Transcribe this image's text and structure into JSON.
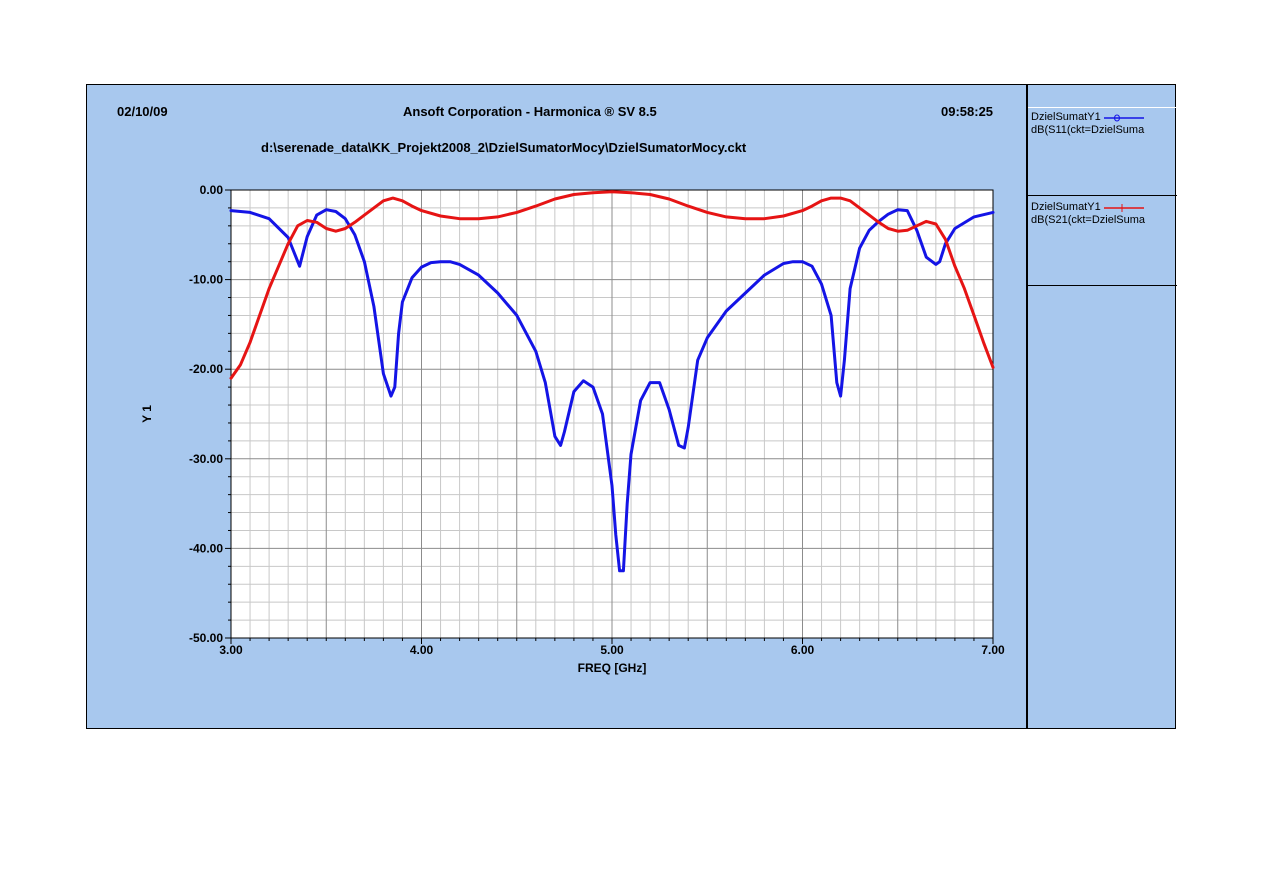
{
  "header": {
    "date": "02/10/09",
    "title": "Ansoft Corporation - Harmonica ® SV 8.5",
    "time": "09:58:25",
    "filepath": "d:\\serenade_data\\KK_Projekt2008_2\\DzielSumatorMocy\\DzielSumatorMocy.ckt"
  },
  "colors": {
    "background": "#a8c8ee",
    "s11": "#1414e6",
    "s21": "#e61414"
  },
  "legend": [
    {
      "name": "DzielSumatY1",
      "expr": "dB(S11(ckt=DzielSuma",
      "color": "#1414e6",
      "marker": "circle"
    },
    {
      "name": "DzielSumatY1",
      "expr": "dB(S21(ckt=DzielSuma",
      "color": "#e61414",
      "marker": "tick"
    }
  ],
  "chart_data": {
    "type": "line",
    "title": "",
    "xlabel": "FREQ [GHz]",
    "ylabel": "Y 1",
    "xlim": [
      3.0,
      7.0
    ],
    "ylim": [
      -50.0,
      0.0
    ],
    "xticks": [
      "3.00",
      "4.00",
      "5.00",
      "6.00",
      "7.00"
    ],
    "yticks": [
      "0.00",
      "-10.00",
      "-20.00",
      "-30.00",
      "-40.00",
      "-50.00"
    ],
    "grid": true,
    "series": [
      {
        "name": "dB(S11(ckt=DzielSuma",
        "color": "#1414e6",
        "x": [
          3.0,
          3.1,
          3.2,
          3.3,
          3.36,
          3.4,
          3.45,
          3.5,
          3.55,
          3.6,
          3.65,
          3.7,
          3.75,
          3.8,
          3.84,
          3.86,
          3.88,
          3.9,
          3.95,
          4.0,
          4.05,
          4.1,
          4.15,
          4.2,
          4.3,
          4.4,
          4.5,
          4.6,
          4.65,
          4.7,
          4.73,
          4.75,
          4.8,
          4.85,
          4.9,
          4.95,
          5.0,
          5.02,
          5.04,
          5.06,
          5.08,
          5.1,
          5.15,
          5.2,
          5.25,
          5.3,
          5.35,
          5.38,
          5.4,
          5.45,
          5.5,
          5.6,
          5.7,
          5.8,
          5.9,
          5.95,
          6.0,
          6.05,
          6.1,
          6.15,
          6.18,
          6.2,
          6.22,
          6.25,
          6.3,
          6.35,
          6.4,
          6.45,
          6.5,
          6.55,
          6.6,
          6.65,
          6.7,
          6.72,
          6.75,
          6.8,
          6.9,
          7.0
        ],
        "values": [
          -2.3,
          -2.5,
          -3.2,
          -5.3,
          -8.5,
          -5.2,
          -2.8,
          -2.2,
          -2.4,
          -3.2,
          -5.0,
          -8.0,
          -13.0,
          -20.5,
          -23.0,
          -22.0,
          -16.0,
          -12.5,
          -9.8,
          -8.6,
          -8.1,
          -8.0,
          -8.0,
          -8.3,
          -9.5,
          -11.5,
          -14.0,
          -18.0,
          -21.5,
          -27.5,
          -28.5,
          -27.0,
          -22.5,
          -21.3,
          -22.0,
          -25.0,
          -33.0,
          -38.5,
          -42.5,
          -42.5,
          -35.0,
          -29.5,
          -23.5,
          -21.5,
          -21.5,
          -24.5,
          -28.5,
          -28.8,
          -26.5,
          -19.0,
          -16.5,
          -13.5,
          -11.5,
          -9.5,
          -8.2,
          -8.0,
          -8.0,
          -8.5,
          -10.5,
          -14.0,
          -21.5,
          -23.0,
          -19.0,
          -11.0,
          -6.5,
          -4.5,
          -3.5,
          -2.7,
          -2.2,
          -2.3,
          -4.5,
          -7.5,
          -8.3,
          -8.0,
          -6.0,
          -4.3,
          -3.0,
          -2.5
        ]
      },
      {
        "name": "dB(S21(ckt=DzielSuma",
        "color": "#e61414",
        "x": [
          3.0,
          3.05,
          3.1,
          3.15,
          3.2,
          3.25,
          3.3,
          3.35,
          3.4,
          3.45,
          3.5,
          3.55,
          3.6,
          3.65,
          3.7,
          3.75,
          3.8,
          3.85,
          3.9,
          3.95,
          4.0,
          4.1,
          4.2,
          4.3,
          4.4,
          4.5,
          4.6,
          4.7,
          4.8,
          4.9,
          5.0,
          5.1,
          5.2,
          5.3,
          5.4,
          5.5,
          5.6,
          5.7,
          5.8,
          5.9,
          6.0,
          6.05,
          6.1,
          6.15,
          6.2,
          6.25,
          6.3,
          6.35,
          6.4,
          6.45,
          6.5,
          6.55,
          6.6,
          6.65,
          6.7,
          6.75,
          6.8,
          6.85,
          6.9,
          6.95,
          7.0
        ],
        "values": [
          -21.0,
          -19.5,
          -17.0,
          -14.0,
          -11.0,
          -8.5,
          -6.0,
          -4.0,
          -3.4,
          -3.6,
          -4.3,
          -4.6,
          -4.3,
          -3.6,
          -2.8,
          -2.0,
          -1.2,
          -0.9,
          -1.2,
          -1.8,
          -2.3,
          -2.9,
          -3.2,
          -3.2,
          -3.0,
          -2.5,
          -1.8,
          -1.0,
          -0.5,
          -0.3,
          -0.2,
          -0.3,
          -0.5,
          -1.0,
          -1.8,
          -2.5,
          -3.0,
          -3.2,
          -3.2,
          -2.9,
          -2.3,
          -1.8,
          -1.2,
          -0.9,
          -0.9,
          -1.2,
          -2.0,
          -2.8,
          -3.6,
          -4.3,
          -4.6,
          -4.5,
          -4.0,
          -3.5,
          -3.8,
          -5.5,
          -8.5,
          -11.0,
          -14.0,
          -17.0,
          -19.8
        ]
      }
    ]
  }
}
